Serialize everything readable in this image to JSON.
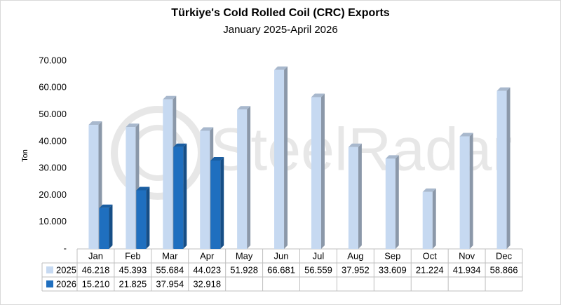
{
  "chart_data": {
    "type": "bar3d",
    "title": "Türkiye's Cold Rolled Coil (CRC) Exports",
    "subtitle": "January 2025-April 2026",
    "y_label": "Ton",
    "watermark": "SteelRadar",
    "categories": [
      "Jan",
      "Feb",
      "Mar",
      "Apr",
      "May",
      "Jun",
      "Jul",
      "Aug",
      "Sep",
      "Oct",
      "Nov",
      "Dec"
    ],
    "series": [
      {
        "name": "2025",
        "color": "#c6d9f1",
        "values": [
          46218,
          45393,
          55684,
          44023,
          51928,
          66681,
          56559,
          37952,
          33609,
          21224,
          41934,
          58866
        ],
        "value_labels": [
          "46.218",
          "45.393",
          "55.684",
          "44.023",
          "51.928",
          "66.681",
          "56.559",
          "37.952",
          "33.609",
          "21.224",
          "41.934",
          "58.866"
        ]
      },
      {
        "name": "2026",
        "color": "#1f6fbf",
        "values": [
          15210,
          21825,
          37954,
          32918,
          null,
          null,
          null,
          null,
          null,
          null,
          null,
          null
        ],
        "value_labels": [
          "15.210",
          "21.825",
          "37.954",
          "32.918",
          null,
          null,
          null,
          null,
          null,
          null,
          null,
          null
        ]
      }
    ],
    "ylim": [
      0,
      70000
    ],
    "yticks": [
      {
        "value": 0,
        "label": "-"
      },
      {
        "value": 10000,
        "label": "10.000"
      },
      {
        "value": 20000,
        "label": "20.000"
      },
      {
        "value": 30000,
        "label": "30.000"
      },
      {
        "value": 40000,
        "label": "40.000"
      },
      {
        "value": 50000,
        "label": "50.000"
      },
      {
        "value": 60000,
        "label": "60.000"
      },
      {
        "value": 70000,
        "label": "70.000"
      }
    ],
    "grid": false
  }
}
